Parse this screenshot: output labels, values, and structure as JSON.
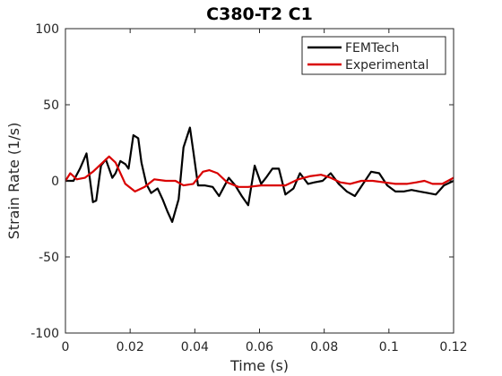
{
  "chart_data": {
    "type": "line",
    "title": "C380-T2 C1",
    "xlabel": "Time (s)",
    "ylabel": "Strain Rate (1/s)",
    "xlim": [
      0,
      0.12
    ],
    "ylim": [
      -100,
      100
    ],
    "xticks": [
      0,
      0.02,
      0.04,
      0.06,
      0.08,
      0.1,
      0.12
    ],
    "xtick_labels": [
      "0",
      "0.02",
      "0.04",
      "0.06",
      "0.08",
      "0.1",
      "0.12"
    ],
    "yticks": [
      -100,
      -50,
      0,
      50,
      100
    ],
    "ytick_labels": [
      "-100",
      "-50",
      "0",
      "50",
      "100"
    ],
    "grid": false,
    "legend_position": "top-right",
    "series": [
      {
        "name": "FEMTech",
        "color": "#000000",
        "x": [
          0,
          0.0025,
          0.0045,
          0.0065,
          0.0085,
          0.0095,
          0.011,
          0.0125,
          0.0145,
          0.0155,
          0.017,
          0.0185,
          0.0195,
          0.021,
          0.0225,
          0.0235,
          0.025,
          0.0265,
          0.0285,
          0.03,
          0.0315,
          0.033,
          0.035,
          0.0365,
          0.0385,
          0.0395,
          0.041,
          0.043,
          0.0455,
          0.0475,
          0.049,
          0.0505,
          0.0525,
          0.0545,
          0.0565,
          0.0585,
          0.0605,
          0.062,
          0.064,
          0.066,
          0.068,
          0.0705,
          0.0725,
          0.075,
          0.077,
          0.0795,
          0.082,
          0.0845,
          0.087,
          0.0895,
          0.092,
          0.0945,
          0.097,
          0.0995,
          0.102,
          0.1045,
          0.107,
          0.1095,
          0.112,
          0.1145,
          0.117,
          0.12
        ],
        "y": [
          0,
          0,
          8,
          18,
          -14,
          -13,
          10,
          14,
          2,
          5,
          13,
          11,
          8,
          30,
          28,
          12,
          -2,
          -8,
          -5,
          -12,
          -20,
          -27,
          -12,
          22,
          35,
          20,
          -3,
          -3,
          -4,
          -10,
          -4,
          2,
          -3,
          -10,
          -16,
          10,
          -2,
          2,
          8,
          8,
          -9,
          -5,
          5,
          -2,
          -1,
          0,
          5,
          -2,
          -7,
          -10,
          -2,
          6,
          5,
          -3,
          -7,
          -7,
          -6,
          -7,
          -8,
          -9,
          -3,
          0
        ]
      },
      {
        "name": "Experimental",
        "color": "#d90000",
        "x": [
          0,
          0.0015,
          0.0035,
          0.006,
          0.0085,
          0.011,
          0.0135,
          0.0155,
          0.0185,
          0.0215,
          0.0245,
          0.0275,
          0.031,
          0.034,
          0.0365,
          0.0395,
          0.0425,
          0.0445,
          0.047,
          0.05,
          0.0535,
          0.0565,
          0.0605,
          0.0645,
          0.068,
          0.072,
          0.0755,
          0.079,
          0.082,
          0.085,
          0.088,
          0.0915,
          0.095,
          0.0985,
          0.102,
          0.1055,
          0.1085,
          0.111,
          0.1135,
          0.1165,
          0.12
        ],
        "y": [
          0,
          5,
          1,
          2,
          6,
          11,
          16,
          12,
          -2,
          -7,
          -4,
          1,
          0,
          0,
          -3,
          -2,
          6,
          7,
          5,
          -1,
          -4,
          -4,
          -3,
          -3,
          -3,
          1,
          3,
          4,
          2,
          -1,
          -2,
          0,
          0,
          -1,
          -2,
          -2,
          -1,
          0,
          -2,
          -2,
          2
        ]
      }
    ]
  }
}
